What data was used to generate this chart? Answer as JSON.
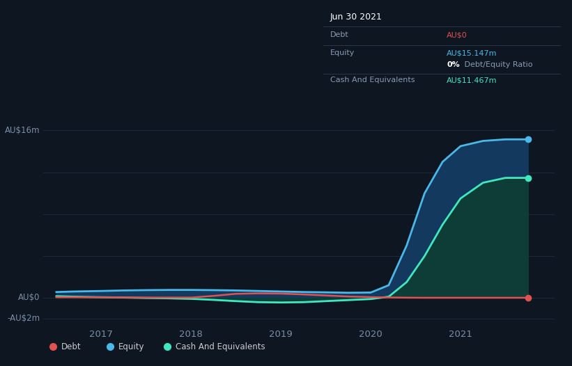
{
  "background_color": "#0e1621",
  "plot_bg_color": "#0e1621",
  "grid_color": "#1c2b3a",
  "ylabel_top": "AU$16m",
  "ylabel_zero": "AU$0",
  "ylabel_neg": "-AU$2m",
  "x_ticks": [
    2017,
    2018,
    2019,
    2020,
    2021
  ],
  "ylim": [
    -2.5,
    18.5
  ],
  "xlim_start": 2016.35,
  "xlim_end": 2022.05,
  "debt_color": "#e05252",
  "equity_color": "#4ab8e8",
  "cash_color": "#40e8c0",
  "equity_fill_color": "#133a5e",
  "cash_fill_color": "#0e3d38",
  "tooltip": {
    "date": "Jun 30 2021",
    "debt_label": "Debt",
    "debt_value": "AU$0",
    "equity_label": "Equity",
    "equity_value": "AU$15.147m",
    "ratio_value": "0%",
    "ratio_text": " Debt/Equity Ratio",
    "cash_label": "Cash And Equivalents",
    "cash_value": "AU$11.467m"
  },
  "legend": {
    "debt_label": "Debt",
    "equity_label": "Equity",
    "cash_label": "Cash And Equivalents"
  },
  "time_points": [
    2016.5,
    2016.7,
    2017.0,
    2017.25,
    2017.5,
    2017.75,
    2018.0,
    2018.25,
    2018.5,
    2018.75,
    2019.0,
    2019.25,
    2019.5,
    2019.75,
    2020.0,
    2020.2,
    2020.4,
    2020.6,
    2020.8,
    2021.0,
    2021.25,
    2021.5,
    2021.75
  ],
  "debt_values": [
    0.05,
    0.05,
    0.04,
    0.03,
    0.02,
    0.02,
    0.02,
    0.18,
    0.38,
    0.42,
    0.4,
    0.32,
    0.22,
    0.12,
    0.06,
    0.03,
    0.01,
    0.0,
    0.0,
    0.0,
    0.0,
    0.0,
    0.0
  ],
  "equity_values": [
    0.55,
    0.6,
    0.65,
    0.7,
    0.73,
    0.75,
    0.75,
    0.73,
    0.7,
    0.65,
    0.6,
    0.55,
    0.52,
    0.48,
    0.5,
    1.2,
    5.0,
    10.0,
    13.0,
    14.5,
    15.0,
    15.147,
    15.147
  ],
  "cash_values": [
    0.15,
    0.1,
    0.05,
    0.02,
    -0.02,
    -0.05,
    -0.1,
    -0.2,
    -0.32,
    -0.42,
    -0.45,
    -0.42,
    -0.32,
    -0.22,
    -0.12,
    0.1,
    1.5,
    4.0,
    7.0,
    9.5,
    11.0,
    11.467,
    11.467
  ]
}
